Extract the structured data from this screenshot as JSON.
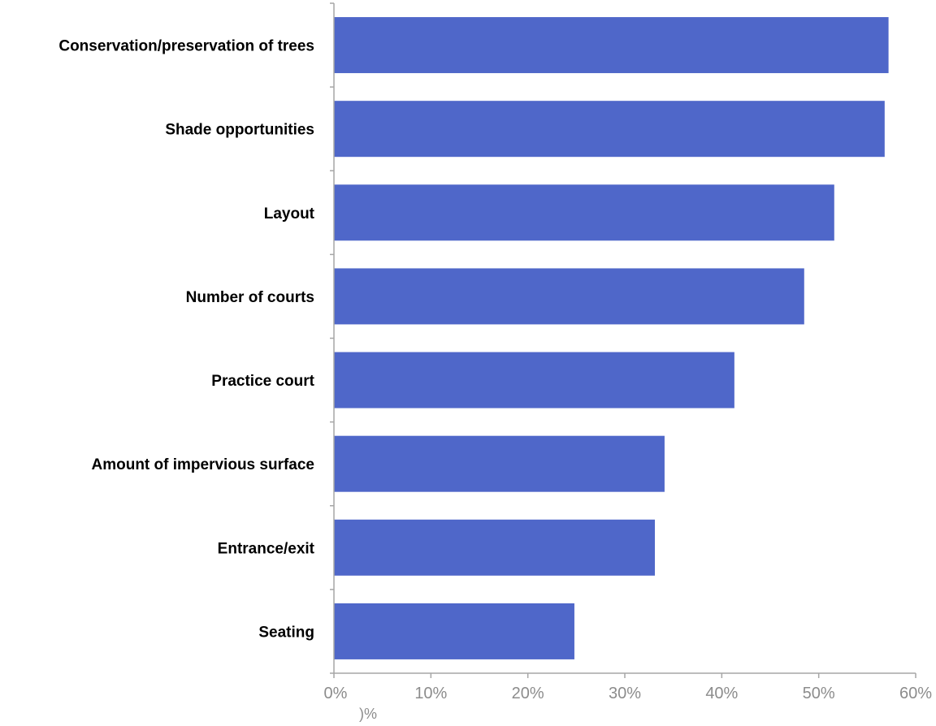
{
  "chart_data": {
    "type": "bar",
    "orientation": "horizontal",
    "categories": [
      "Conservation/preservation of trees",
      "Shade opportunities",
      "Layout",
      "Number of courts",
      "Practice court",
      "Amount of impervious surface",
      "Entrance/exit",
      "Seating"
    ],
    "values": [
      57.2,
      56.8,
      51.6,
      48.5,
      41.3,
      34.1,
      33.1,
      24.8
    ],
    "xlim": [
      0,
      60
    ],
    "x_ticks": [
      "0%",
      "10%",
      "20%",
      "30%",
      "40%",
      "50%",
      "60%"
    ],
    "x_tick_values": [
      0,
      10,
      20,
      30,
      40,
      50,
      60
    ],
    "stray_tick_label": ")%",
    "title": "",
    "xlabel": "",
    "ylabel": "",
    "grid": false,
    "legend": "none",
    "bar_color": "#4f67c9",
    "axis_color": "#a6a6a6",
    "tick_label_color": "#8c8c8c"
  }
}
